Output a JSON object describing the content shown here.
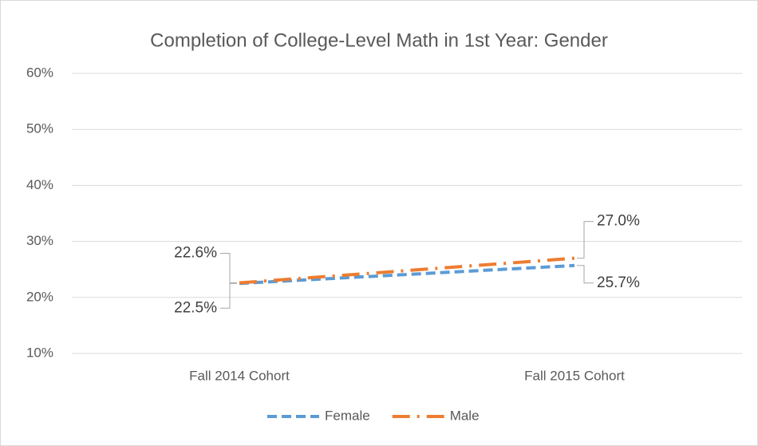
{
  "chart_data": {
    "type": "line",
    "title": "Completion of College-Level Math in 1st Year: Gender",
    "categories": [
      "Fall 2014 Cohort",
      "Fall 2015 Cohort"
    ],
    "series": [
      {
        "name": "Female",
        "color": "#5b9bd5",
        "values": [
          22.5,
          25.7
        ],
        "value_labels": [
          "22.5%",
          "25.7%"
        ]
      },
      {
        "name": "Male",
        "color": "#ed7d31",
        "values": [
          22.6,
          27.0
        ],
        "value_labels": [
          "22.6%",
          "27.0%"
        ]
      }
    ],
    "ylim": [
      10,
      60
    ],
    "yticks": [
      {
        "value": 10,
        "label": "10%"
      },
      {
        "value": 20,
        "label": "20%"
      },
      {
        "value": 30,
        "label": "30%"
      },
      {
        "value": 40,
        "label": "40%"
      },
      {
        "value": 50,
        "label": "50%"
      },
      {
        "value": 60,
        "label": "60%"
      }
    ],
    "grid": true,
    "legend": "bottom"
  }
}
